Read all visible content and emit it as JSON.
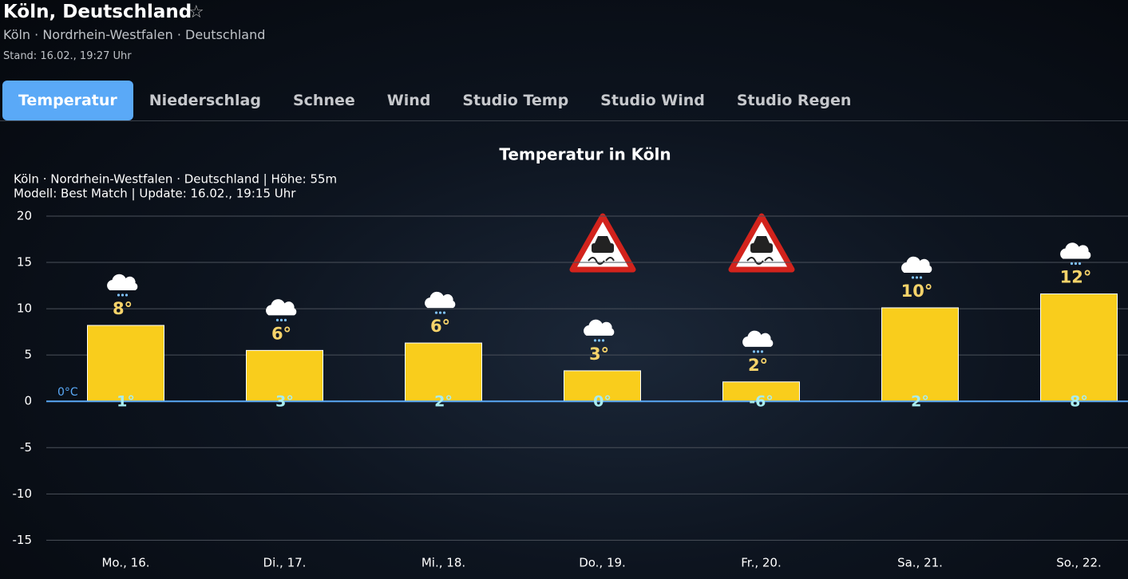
{
  "header": {
    "title": "Köln, Deutschland",
    "favorite_icon": "☆",
    "location": "Köln · Nordrhein-Westfalen · Deutschland",
    "updated": "Stand: 16.02., 19:27 Uhr"
  },
  "tabs": [
    "Temperatur",
    "Niederschlag",
    "Schnee",
    "Wind",
    "Studio Temp",
    "Studio Wind",
    "Studio Regen"
  ],
  "chart_data": {
    "type": "bar",
    "title": "Temperatur in Köln",
    "subtitle_lines": [
      "Köln · Nordrhein-Westfalen · Deutschland | Höhe: 55m",
      "Modell: Best Match | Update: 16.02., 19:15 Uhr"
    ],
    "categories": [
      "Mo., 16.",
      "Di., 17.",
      "Mi., 18.",
      "Do., 19.",
      "Fr., 20.",
      "Sa., 21.",
      "So., 22."
    ],
    "values": [
      8.2,
      5.5,
      6.3,
      3.3,
      2.1,
      10.1,
      11.6
    ],
    "value_labels": [
      "8°",
      "6°",
      "6°",
      "3°",
      "2°",
      "10°",
      "12°"
    ],
    "min_labels": [
      "1°",
      "3°",
      "2°",
      "0°",
      "-6°",
      "2°",
      "8°"
    ],
    "zero_line_label": "0°C",
    "color": "#f9cd1c",
    "ylim": [
      -16,
      20
    ],
    "yticks": [
      20,
      15,
      10,
      5,
      0,
      -5,
      -10,
      -15
    ],
    "grid": true
  }
}
